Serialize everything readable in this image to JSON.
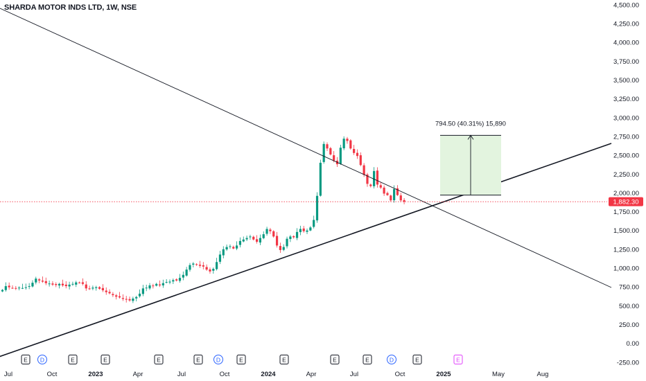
{
  "header": {
    "title": "SHARDA MOTOR INDS LTD, 1W, NSE"
  },
  "colors": {
    "up": "#089981",
    "down": "#f23645",
    "price_line": "#f23645",
    "trendline": "#131722",
    "projection_fill": "#e3f4df",
    "event_earnings": "#131722",
    "event_dividend": "#2962ff",
    "event_future": "#e040fb"
  },
  "chart_data": {
    "type": "candlestick",
    "title": "SHARDA MOTOR INDS LTD, 1W, NSE",
    "ylim": [
      -300,
      4550
    ],
    "y_ticks": [
      "4,500.00",
      "4,250.00",
      "4,000.00",
      "3,750.00",
      "3,500.00",
      "3,250.00",
      "3,000.00",
      "2,750.00",
      "2,500.00",
      "2,250.00",
      "2,000.00",
      "1,750.00",
      "1,500.00",
      "1,250.00",
      "1,000.00",
      "750.00",
      "500.00",
      "250.00",
      "0.00",
      "-250.00"
    ],
    "x_ticks": [
      "Jul",
      "Oct",
      "2023",
      "Apr",
      "Jul",
      "Oct",
      "2024",
      "Apr",
      "Jul",
      "Oct",
      "2025",
      "May",
      "Aug"
    ],
    "last_price": {
      "label": "1,882.30",
      "value": 1882.3
    },
    "measure": {
      "label": "794.50 (40.31%) 15,890",
      "from_value": 1970,
      "to_value": 2765
    },
    "events": [
      {
        "label": "E",
        "kind": "earnings"
      },
      {
        "label": "D",
        "kind": "dividend"
      },
      {
        "label": "E",
        "kind": "earnings"
      },
      {
        "label": "E",
        "kind": "earnings"
      },
      {
        "label": "E",
        "kind": "earnings"
      },
      {
        "label": "E",
        "kind": "earnings"
      },
      {
        "label": "D",
        "kind": "dividend"
      },
      {
        "label": "E",
        "kind": "earnings"
      },
      {
        "label": "E",
        "kind": "earnings"
      },
      {
        "label": "E",
        "kind": "earnings"
      },
      {
        "label": "E",
        "kind": "earnings"
      },
      {
        "label": "D",
        "kind": "dividend"
      },
      {
        "label": "E",
        "kind": "earnings"
      },
      {
        "label": "E",
        "kind": "future"
      }
    ],
    "closes": [
      710,
      760,
      745,
      735,
      730,
      740,
      735,
      745,
      760,
      805,
      860,
      835,
      820,
      800,
      795,
      780,
      775,
      790,
      770,
      760,
      780,
      790,
      810,
      805,
      790,
      730,
      720,
      740,
      745,
      725,
      705,
      680,
      665,
      640,
      620,
      610,
      590,
      580,
      570,
      595,
      615,
      660,
      730,
      740,
      770,
      760,
      790,
      770,
      800,
      815,
      820,
      840,
      835,
      870,
      910,
      980,
      1040,
      1060,
      1045,
      1030,
      1020,
      980,
      955,
      990,
      1080,
      1180,
      1250,
      1280,
      1290,
      1260,
      1300,
      1360,
      1380,
      1400,
      1420,
      1380,
      1350,
      1400,
      1450,
      1520,
      1490,
      1420,
      1300,
      1240,
      1280,
      1390,
      1420,
      1410,
      1480,
      1520,
      1490,
      1500,
      1540,
      1640,
      1960,
      2400,
      2650,
      2590,
      2510,
      2430,
      2380,
      2600,
      2720,
      2690,
      2590,
      2530,
      2490,
      2370,
      2240,
      2120,
      2090,
      2290,
      2110,
      2070,
      1990,
      1970,
      1900,
      2050,
      1970,
      1900,
      1882
    ]
  }
}
